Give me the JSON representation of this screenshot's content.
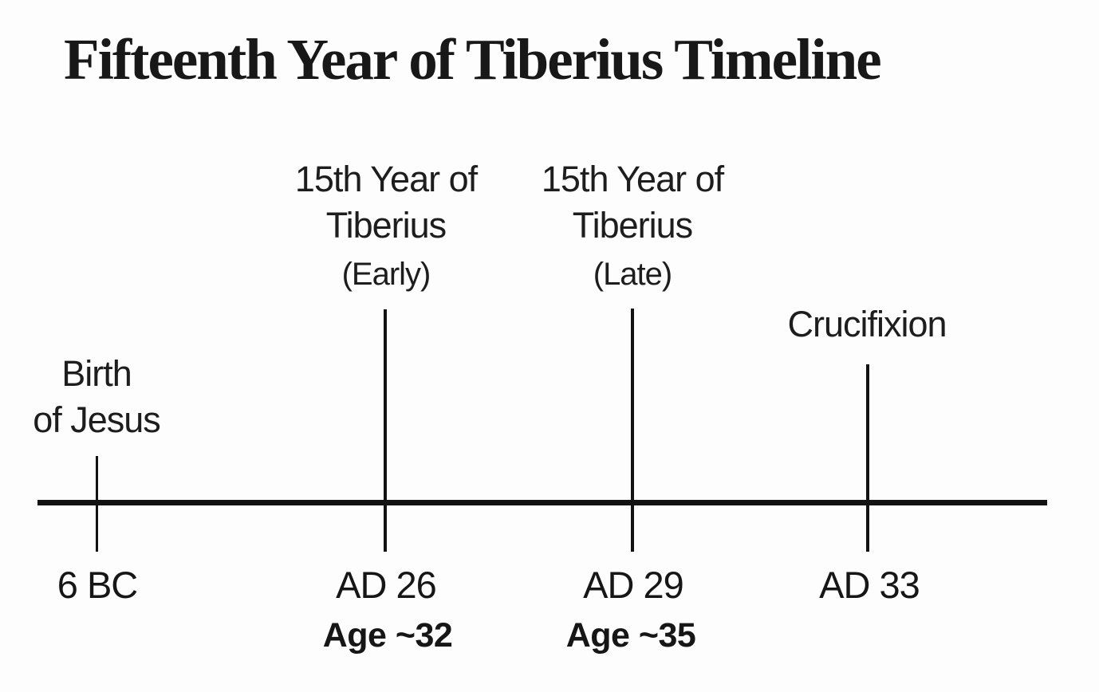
{
  "title": "Fifteenth Year of Tiberius Timeline",
  "chart_data": {
    "type": "timeline",
    "title": "Fifteenth Year of Tiberius Timeline",
    "axis": {
      "orientation": "horizontal",
      "start_label": "6 BC",
      "end_label": "AD 33"
    },
    "events": [
      {
        "year": "6 BC",
        "label_lines": [
          "Birth",
          "of Jesus"
        ],
        "sublabel": "",
        "age": ""
      },
      {
        "year": "AD 26",
        "label_lines": [
          "15th Year of",
          "Tiberius"
        ],
        "sublabel": "(Early)",
        "age": "Age ~32"
      },
      {
        "year": "AD 29",
        "label_lines": [
          "15th Year of",
          "Tiberius"
        ],
        "sublabel": "(Late)",
        "age": "Age ~35"
      },
      {
        "year": "AD 33",
        "label_lines": [
          "Crucifixion"
        ],
        "sublabel": "",
        "age": ""
      }
    ]
  },
  "colors": {
    "background": "#fdfdfd",
    "text": "#1d1d1d",
    "line": "#121212"
  }
}
